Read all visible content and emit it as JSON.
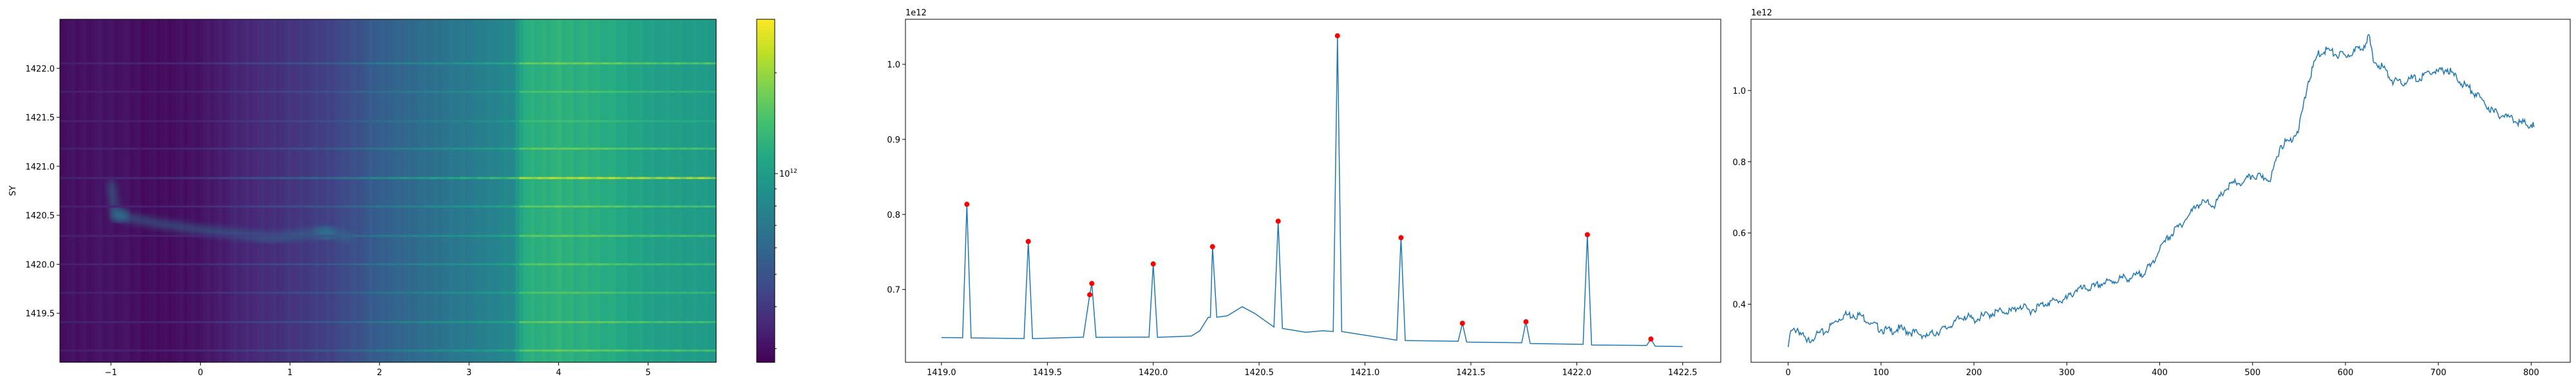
{
  "chart_data": [
    {
      "type": "heatmap",
      "ylabel": "SY",
      "xlim": [
        -1.57,
        5.76
      ],
      "ylim": [
        1419.0,
        1422.5
      ],
      "xticks": [
        -1,
        0,
        1,
        2,
        3,
        4,
        5
      ],
      "xtick_labels": [
        "−1",
        "0",
        "1",
        "2",
        "3",
        "4",
        "5"
      ],
      "yticks": [
        1419.5,
        1420.0,
        1420.5,
        1421.0,
        1421.5,
        1422.0
      ],
      "ytick_labels": [
        "1419.5",
        "1420.0",
        "1420.5",
        "1421.0",
        "1421.5",
        "1422.0"
      ],
      "colormap": "viridis",
      "colorbar": {
        "scale": "log",
        "range": [
          273000000000.0,
          2890000000000.0
        ],
        "major_tick": 1000000000000.0,
        "major_label_base": "10",
        "major_label_exp": "12",
        "minor_ticks": [
          300000000000.0,
          400000000000.0,
          500000000000.0,
          600000000000.0,
          700000000000.0,
          800000000000.0,
          900000000000.0,
          2000000000000.0
        ]
      },
      "column_profile": {
        "x": [
          -1.57,
          -1.0,
          -0.5,
          0.0,
          0.5,
          1.0,
          1.5,
          2.0,
          2.5,
          3.0,
          3.5,
          3.6,
          4.0,
          4.5,
          5.0,
          5.76
        ],
        "level": [
          0.04,
          0.05,
          0.03,
          0.05,
          0.11,
          0.15,
          0.2,
          0.3,
          0.36,
          0.41,
          0.47,
          0.62,
          0.64,
          0.62,
          0.57,
          0.54
        ]
      },
      "bright_rows": {
        "y": [
          1422.05,
          1421.76,
          1421.46,
          1421.18,
          1420.88,
          1420.59,
          1420.29,
          1420.0,
          1419.71,
          1419.41,
          1419.12
        ],
        "strength": [
          0.12,
          0.05,
          0.02,
          0.1,
          0.25,
          0.1,
          0.1,
          0.08,
          0.06,
          0.1,
          0.1
        ]
      },
      "diffuse_feature": {
        "x": [
          -1.0,
          -0.95,
          -0.5,
          0.0,
          0.8,
          1.4,
          1.7
        ],
        "y": [
          1420.85,
          1420.5,
          1420.42,
          1420.35,
          1420.27,
          1420.33,
          1420.27
        ]
      }
    },
    {
      "type": "line",
      "offset_label": "1e12",
      "xlim": [
        1418.83,
        1422.68
      ],
      "ylim": [
        0.603,
        1.06
      ],
      "xticks": [
        1419.0,
        1419.5,
        1420.0,
        1420.5,
        1421.0,
        1421.5,
        1422.0,
        1422.5
      ],
      "xtick_labels": [
        "1419.0",
        "1419.5",
        "1420.0",
        "1420.5",
        "1421.0",
        "1421.5",
        "1422.0",
        "1422.5"
      ],
      "yticks": [
        0.7,
        0.8,
        0.9,
        1.0
      ],
      "ytick_labels": [
        "0.7",
        "0.8",
        "0.9",
        "1.0"
      ],
      "line_color": "#1f77b4",
      "marker_color": "#ff0000",
      "x": [
        1419.0,
        1419.1,
        1419.12,
        1419.14,
        1419.39,
        1419.41,
        1419.43,
        1419.67,
        1419.7,
        1419.71,
        1419.73,
        1419.98,
        1420.0,
        1420.02,
        1420.18,
        1420.22,
        1420.26,
        1420.27,
        1420.28,
        1420.3,
        1420.35,
        1420.42,
        1420.48,
        1420.57,
        1420.59,
        1420.61,
        1420.72,
        1420.8,
        1420.85,
        1420.87,
        1420.89,
        1421.15,
        1421.17,
        1421.19,
        1421.44,
        1421.46,
        1421.48,
        1421.74,
        1421.76,
        1421.78,
        1422.03,
        1422.05,
        1422.07,
        1422.33,
        1422.35,
        1422.37,
        1422.5
      ],
      "y": [
        0.636,
        0.6357,
        0.8135,
        0.6355,
        0.6347,
        0.764,
        0.6346,
        0.6365,
        0.693,
        0.708,
        0.6363,
        0.6366,
        0.734,
        0.6363,
        0.638,
        0.645,
        0.663,
        0.663,
        0.757,
        0.663,
        0.665,
        0.677,
        0.668,
        0.65,
        0.791,
        0.648,
        0.643,
        0.645,
        0.644,
        1.038,
        0.644,
        0.6325,
        0.769,
        0.632,
        0.631,
        0.655,
        0.63,
        0.629,
        0.657,
        0.628,
        0.627,
        0.773,
        0.626,
        0.6255,
        0.634,
        0.6245,
        0.624
      ],
      "peaks": {
        "x": [
          1419.12,
          1419.41,
          1419.7,
          1419.71,
          1420.0,
          1420.28,
          1420.59,
          1420.87,
          1421.17,
          1421.46,
          1421.76,
          1422.05,
          1422.35
        ],
        "y": [
          0.8135,
          0.764,
          0.693,
          0.708,
          0.734,
          0.757,
          0.791,
          1.038,
          0.769,
          0.655,
          0.657,
          0.773,
          0.634
        ]
      }
    },
    {
      "type": "line",
      "offset_label": "1e12",
      "xlim": [
        -40,
        842
      ],
      "ylim": [
        0.237,
        1.2
      ],
      "xticks": [
        0,
        100,
        200,
        300,
        400,
        500,
        600,
        700,
        800
      ],
      "xtick_labels": [
        "0",
        "100",
        "200",
        "300",
        "400",
        "500",
        "600",
        "700",
        "800"
      ],
      "yticks": [
        0.4,
        0.6,
        0.8,
        1.0
      ],
      "ytick_labels": [
        "0.4",
        "0.6",
        "0.8",
        "1.0"
      ],
      "line_color": "#1f77b4",
      "x": [
        0,
        2,
        10,
        20,
        30,
        40,
        50,
        60,
        70,
        80,
        90,
        100,
        110,
        120,
        130,
        140,
        150,
        160,
        170,
        180,
        190,
        200,
        210,
        220,
        230,
        240,
        250,
        260,
        270,
        280,
        290,
        300,
        310,
        320,
        330,
        340,
        350,
        360,
        370,
        380,
        390,
        400,
        410,
        420,
        430,
        440,
        450,
        460,
        470,
        480,
        490,
        500,
        510,
        520,
        530,
        540,
        550,
        560,
        570,
        580,
        590,
        600,
        610,
        620,
        625,
        630,
        640,
        650,
        660,
        670,
        680,
        690,
        700,
        710,
        720,
        730,
        740,
        750,
        760,
        770,
        780,
        790,
        800,
        803
      ],
      "y": [
        0.28,
        0.318,
        0.332,
        0.294,
        0.315,
        0.322,
        0.35,
        0.37,
        0.37,
        0.367,
        0.346,
        0.329,
        0.325,
        0.332,
        0.322,
        0.318,
        0.311,
        0.322,
        0.332,
        0.353,
        0.367,
        0.356,
        0.367,
        0.374,
        0.381,
        0.381,
        0.395,
        0.381,
        0.395,
        0.405,
        0.409,
        0.415,
        0.44,
        0.443,
        0.45,
        0.46,
        0.464,
        0.474,
        0.474,
        0.485,
        0.506,
        0.554,
        0.589,
        0.617,
        0.644,
        0.679,
        0.686,
        0.679,
        0.72,
        0.741,
        0.741,
        0.762,
        0.755,
        0.755,
        0.845,
        0.859,
        0.894,
        1.026,
        1.1,
        1.116,
        1.1,
        1.098,
        1.11,
        1.126,
        1.157,
        1.081,
        1.067,
        1.029,
        1.019,
        1.033,
        1.033,
        1.053,
        1.053,
        1.06,
        1.033,
        1.012,
        0.991,
        0.963,
        0.939,
        0.929,
        0.922,
        0.908,
        0.904,
        0.897
      ]
    }
  ]
}
